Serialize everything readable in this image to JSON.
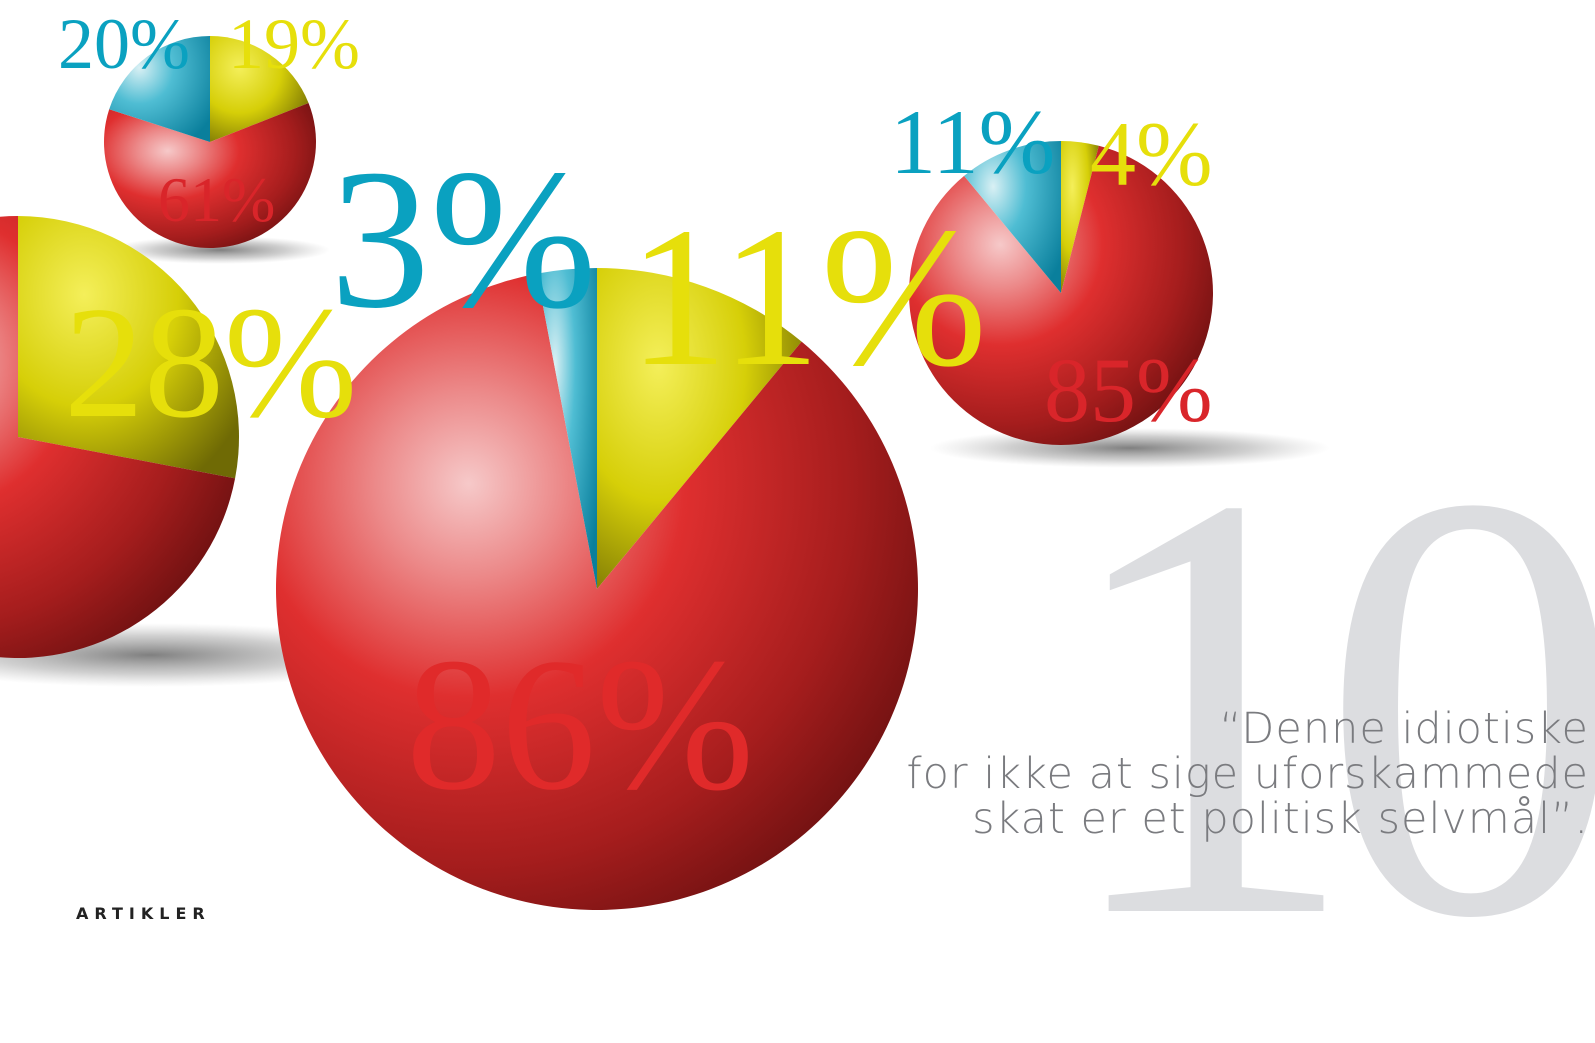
{
  "pies": {
    "top_left": {
      "labels": {
        "blue": "20%",
        "yellow": "19%",
        "red": "61%"
      },
      "values": {
        "blue": 20,
        "yellow": 19,
        "red": 61
      }
    },
    "left": {
      "labels": {
        "yellow": "28%"
      },
      "values": {
        "yellow": 28
      }
    },
    "center": {
      "labels": {
        "blue": "3%",
        "yellow": "11%",
        "red": "86%"
      },
      "values": {
        "blue": 3,
        "yellow": 11,
        "red": 86
      }
    },
    "right": {
      "labels": {
        "blue": "11%",
        "yellow": "4%",
        "red": "85%"
      },
      "values": {
        "blue": 11,
        "yellow": 4,
        "red": 85
      }
    }
  },
  "colors": {
    "red": "#d9252a",
    "yellow": "#e6df0b",
    "blue": "#0aa1c0",
    "big_number": "#dcdde0"
  },
  "page_number": "10",
  "quote": {
    "line1": "“Denne idiotiske",
    "line2": "for ikke at sige uforskammede",
    "line3": "skat er et politisk selvmål”."
  },
  "section_label": "ARTIKLER"
}
